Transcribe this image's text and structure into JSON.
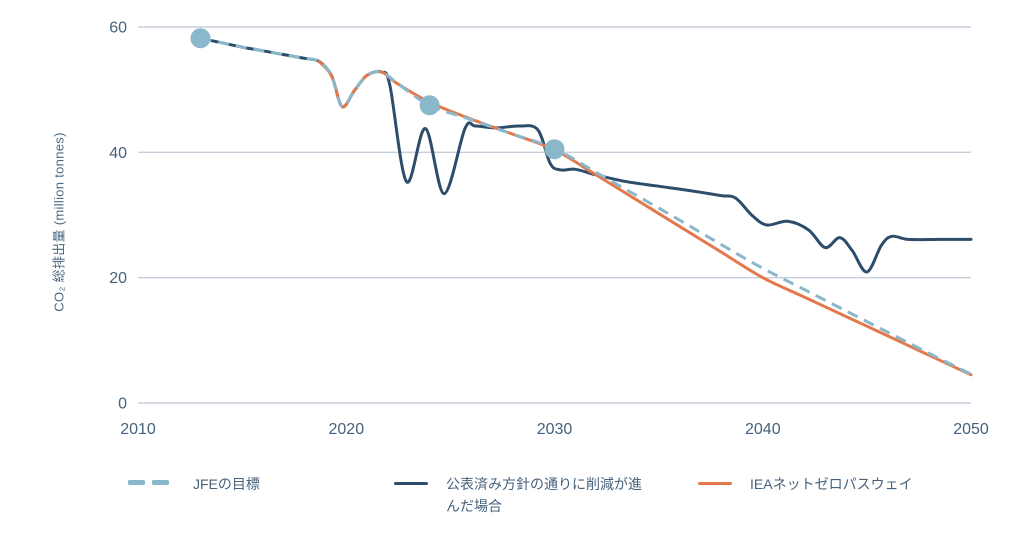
{
  "chart": {
    "title": "",
    "y_axis_title": "CO₂ 総排出量 (million tonnes)"
  },
  "chart_data": {
    "type": "line",
    "title": "",
    "xlabel": "",
    "ylabel": "CO₂ 総排出量 (million tonnes)",
    "xlim": [
      2010,
      2050
    ],
    "ylim": [
      0,
      60
    ],
    "x_ticks": [
      2010,
      2020,
      2030,
      2040,
      2050
    ],
    "y_ticks": [
      0,
      20,
      40,
      60
    ],
    "grid": "horizontal-only",
    "legend_position": "bottom",
    "series": [
      {
        "id": "announced-policy",
        "name": "公表済み方針の通りに削減が進んだ場合",
        "color": "#2e4d6b",
        "line_style": "solid",
        "points": [
          [
            2013,
            58.2
          ],
          [
            2014,
            57.5
          ],
          [
            2015,
            56.8
          ],
          [
            2016,
            56.2
          ],
          [
            2017,
            55.6
          ],
          [
            2018,
            55.0
          ],
          [
            2018.7,
            54.5
          ],
          [
            2019.3,
            52.2
          ],
          [
            2019.8,
            47.3
          ],
          [
            2020.4,
            49.9
          ],
          [
            2021.0,
            52.3
          ],
          [
            2021.7,
            52.8
          ],
          [
            2022.1,
            50.6
          ],
          [
            2022.9,
            35.3
          ],
          [
            2023.8,
            43.8
          ],
          [
            2024.7,
            33.4
          ],
          [
            2025.7,
            43.8
          ],
          [
            2026.2,
            44.2
          ],
          [
            2027.2,
            43.9
          ],
          [
            2028.3,
            44.2
          ],
          [
            2029.2,
            43.6
          ],
          [
            2029.8,
            38.2
          ],
          [
            2030.3,
            37.2
          ],
          [
            2031,
            37.3
          ],
          [
            2032,
            36.4
          ],
          [
            2033.5,
            35.3
          ],
          [
            2035,
            34.6
          ],
          [
            2036.5,
            33.9
          ],
          [
            2038,
            33.1
          ],
          [
            2038.7,
            32.7
          ],
          [
            2039.5,
            29.9
          ],
          [
            2040.2,
            28.4
          ],
          [
            2041.2,
            29.0
          ],
          [
            2042.2,
            27.6
          ],
          [
            2043.0,
            24.8
          ],
          [
            2043.7,
            26.4
          ],
          [
            2044.3,
            24.3
          ],
          [
            2045.0,
            20.9
          ],
          [
            2045.7,
            25.2
          ],
          [
            2046.2,
            26.6
          ],
          [
            2047,
            26.1
          ],
          [
            2048.5,
            26.1
          ],
          [
            2050,
            26.1
          ]
        ]
      },
      {
        "id": "iea-net-zero",
        "name": "IEAネットゼロパスウェイ",
        "color": "#e3794b",
        "line_style": "solid",
        "points": [
          [
            2018.7,
            54.5
          ],
          [
            2019.3,
            52.2
          ],
          [
            2019.8,
            47.3
          ],
          [
            2020.4,
            49.9
          ],
          [
            2021.0,
            52.3
          ],
          [
            2021.7,
            52.8
          ],
          [
            2022.4,
            51.1
          ],
          [
            2024,
            48.0
          ],
          [
            2026,
            45.3
          ],
          [
            2028,
            42.9
          ],
          [
            2030,
            40.4
          ],
          [
            2032,
            36.4
          ],
          [
            2034,
            32.3
          ],
          [
            2036,
            28.2
          ],
          [
            2038,
            24.1
          ],
          [
            2040,
            20.0
          ],
          [
            2042,
            16.9
          ],
          [
            2044,
            13.8
          ],
          [
            2046,
            10.7
          ],
          [
            2048,
            7.6
          ],
          [
            2050,
            4.5
          ]
        ]
      },
      {
        "id": "jfe-target",
        "name": "JFEの目標",
        "color": "#8bb7cb",
        "line_style": "dashed",
        "points": [
          [
            2013,
            58.2
          ],
          [
            2014,
            57.5
          ],
          [
            2015,
            56.8
          ],
          [
            2016,
            56.2
          ],
          [
            2017,
            55.6
          ],
          [
            2018,
            55.0
          ],
          [
            2018.7,
            54.5
          ],
          [
            2019.3,
            52.2
          ],
          [
            2019.8,
            47.3
          ],
          [
            2020.4,
            49.9
          ],
          [
            2021.0,
            52.3
          ],
          [
            2021.7,
            52.8
          ],
          [
            2022.5,
            50.9
          ],
          [
            2024,
            47.5
          ],
          [
            2026,
            45.2
          ],
          [
            2028,
            42.9
          ],
          [
            2030,
            40.6
          ],
          [
            2032,
            36.8
          ],
          [
            2034,
            33.0
          ],
          [
            2036,
            29.2
          ],
          [
            2038,
            25.3
          ],
          [
            2040,
            21.5
          ],
          [
            2042,
            18.1
          ],
          [
            2044,
            14.7
          ],
          [
            2046,
            11.3
          ],
          [
            2048,
            7.9
          ],
          [
            2050,
            4.6
          ]
        ]
      }
    ],
    "markers": {
      "description": "JFE target milestone dots",
      "color": "#8bb7cb",
      "points": [
        [
          2013,
          58.2
        ],
        [
          2024,
          47.5
        ],
        [
          2030,
          40.5
        ]
      ]
    }
  },
  "legend": {
    "items": [
      {
        "label": "JFEの目標",
        "style": "dashed",
        "color": "#8bb7cb"
      },
      {
        "label": "公表済み方針の通りに削減が進んだ場合",
        "style": "solid",
        "color": "#2e4d6b"
      },
      {
        "label": "IEAネットゼロパスウェイ",
        "style": "solid",
        "color": "#e3794b"
      }
    ]
  }
}
